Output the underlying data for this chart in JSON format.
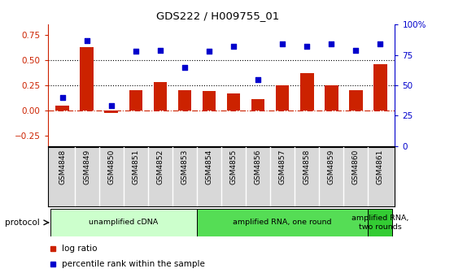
{
  "title": "GDS222 / H009755_01",
  "samples": [
    "GSM4848",
    "GSM4849",
    "GSM4850",
    "GSM4851",
    "GSM4852",
    "GSM4853",
    "GSM4854",
    "GSM4855",
    "GSM4856",
    "GSM4857",
    "GSM4858",
    "GSM4859",
    "GSM4860",
    "GSM4861"
  ],
  "log_ratio": [
    0.05,
    0.63,
    -0.02,
    0.2,
    0.28,
    0.2,
    0.19,
    0.17,
    0.11,
    0.25,
    0.37,
    0.25,
    0.2,
    0.46
  ],
  "percentile": [
    40,
    87,
    33,
    78,
    79,
    65,
    78,
    82,
    55,
    84,
    82,
    84,
    79,
    84
  ],
  "bar_color": "#cc2200",
  "dot_color": "#0000cc",
  "ylim_left": [
    -0.35,
    0.85
  ],
  "ylim_right": [
    0,
    100
  ],
  "yticks_left": [
    -0.25,
    0.0,
    0.25,
    0.5,
    0.75
  ],
  "yticks_right": [
    0,
    25,
    50,
    75,
    100
  ],
  "ytick_labels_right": [
    "0",
    "25",
    "50",
    "75",
    "100%"
  ],
  "hlines_dotted": [
    0.25,
    0.5
  ],
  "hline_dashdot": 0.0,
  "protocol_groups": [
    {
      "label": "unamplified cDNA",
      "start": 0,
      "end": 5,
      "color": "#ccffcc"
    },
    {
      "label": "amplified RNA, one round",
      "start": 6,
      "end": 12,
      "color": "#55dd55"
    },
    {
      "label": "amplified RNA,\ntwo rounds",
      "start": 13,
      "end": 13,
      "color": "#33cc33"
    }
  ],
  "legend_items": [
    {
      "label": "log ratio",
      "color": "#cc2200"
    },
    {
      "label": "percentile rank within the sample",
      "color": "#0000cc"
    }
  ],
  "protocol_label": "protocol",
  "cell_bg_color": "#d8d8d8",
  "background_color": "#ffffff"
}
